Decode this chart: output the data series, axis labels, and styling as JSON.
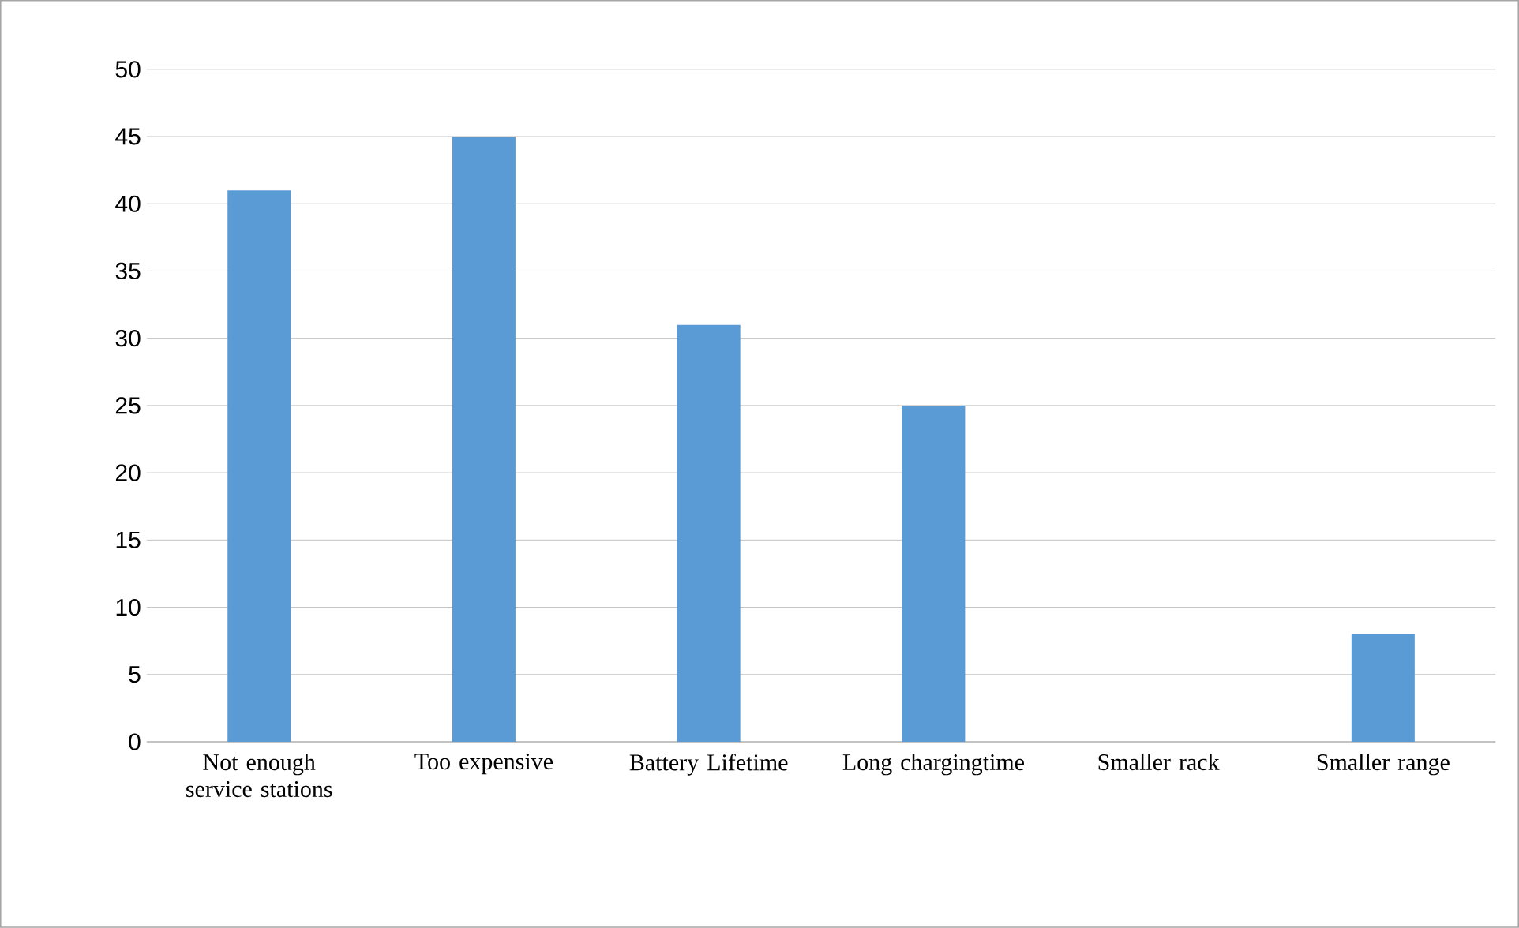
{
  "chart_data": {
    "type": "bar",
    "categories": [
      "Not enough service stations",
      "Too expensive",
      "Battery Lifetime",
      "Long chargingtime",
      "Smaller rack",
      "Smaller range"
    ],
    "values": [
      41,
      45,
      31,
      25,
      0,
      8
    ],
    "color": "#5b9bd5",
    "ylim": [
      0,
      50
    ],
    "yticks": [
      0,
      5,
      10,
      15,
      20,
      25,
      30,
      35,
      40,
      45,
      50
    ],
    "grid": "y"
  }
}
